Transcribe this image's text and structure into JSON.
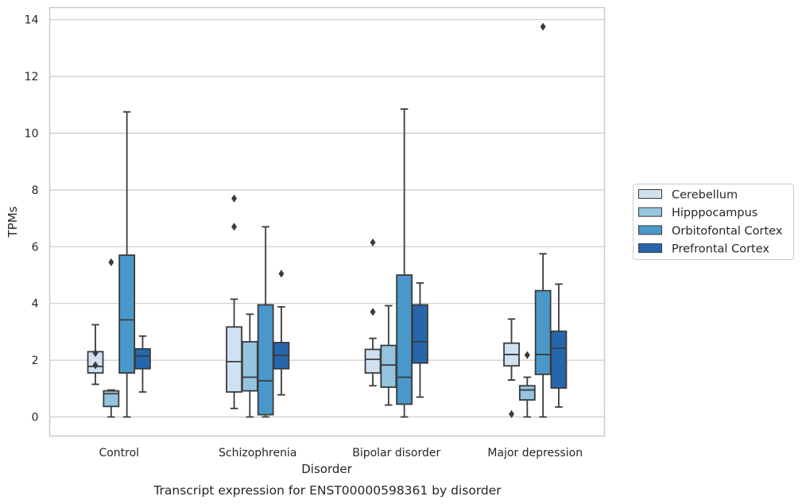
{
  "chart_data": {
    "type": "box",
    "title": "",
    "caption": "Transcript expression for ENST00000598361 by disorder",
    "xlabel": "Disorder",
    "ylabel": "TPMs",
    "ylim": [
      -0.65,
      14.45
    ],
    "yticks": [
      "0",
      "2",
      "4",
      "6",
      "8",
      "10",
      "12",
      "14"
    ],
    "grid": "horizontal",
    "legend_placement": "right",
    "categories": [
      "Control",
      "Schizophrenia",
      "Bipolar disorder",
      "Major depression"
    ],
    "series": [
      {
        "name": "Cerebellum",
        "color": "#d0e1f2",
        "boxes": [
          {
            "min": 1.15,
            "q1": 1.55,
            "median": 1.78,
            "q3": 2.3,
            "max": 3.25,
            "outliers": [
              2.25,
              1.82
            ]
          },
          {
            "min": 0.3,
            "q1": 0.88,
            "median": 1.95,
            "q3": 3.17,
            "max": 4.15,
            "outliers": [
              7.7,
              6.7
            ]
          },
          {
            "min": 1.1,
            "q1": 1.55,
            "median": 2.03,
            "q3": 2.38,
            "max": 2.77,
            "outliers": [
              6.15,
              3.7
            ]
          },
          {
            "min": 1.3,
            "q1": 1.8,
            "median": 2.2,
            "q3": 2.6,
            "max": 3.45,
            "outliers": [
              0.1
            ]
          }
        ]
      },
      {
        "name": "Hipppocampus",
        "color": "#94c4df",
        "boxes": [
          {
            "min": 0.0,
            "q1": 0.37,
            "median": 0.82,
            "q3": 0.92,
            "max": 0.95,
            "outliers": [
              5.45
            ]
          },
          {
            "min": 0.0,
            "q1": 0.92,
            "median": 1.4,
            "q3": 2.65,
            "max": 3.62,
            "outliers": []
          },
          {
            "min": 0.42,
            "q1": 1.05,
            "median": 1.83,
            "q3": 2.52,
            "max": 3.92,
            "outliers": []
          },
          {
            "min": 0.0,
            "q1": 0.6,
            "median": 0.95,
            "q3": 1.1,
            "max": 1.4,
            "outliers": [
              2.18
            ]
          }
        ]
      },
      {
        "name": "Orbitofontal Cortex",
        "color": "#4a98c9",
        "boxes": [
          {
            "min": 0.0,
            "q1": 1.55,
            "median": 3.42,
            "q3": 5.7,
            "max": 10.75,
            "outliers": []
          },
          {
            "min": 0.0,
            "q1": 0.08,
            "median": 1.27,
            "q3": 3.95,
            "max": 6.7,
            "outliers": []
          },
          {
            "min": 0.0,
            "q1": 0.45,
            "median": 1.4,
            "q3": 5.0,
            "max": 10.85,
            "outliers": []
          },
          {
            "min": 0.0,
            "q1": 1.5,
            "median": 2.2,
            "q3": 4.45,
            "max": 5.75,
            "outliers": [
              13.75
            ]
          }
        ]
      },
      {
        "name": "Prefrontal Cortex",
        "color": "#2666ad",
        "boxes": [
          {
            "min": 0.88,
            "q1": 1.7,
            "median": 2.15,
            "q3": 2.4,
            "max": 2.85,
            "outliers": []
          },
          {
            "min": 0.78,
            "q1": 1.7,
            "median": 2.17,
            "q3": 2.62,
            "max": 3.88,
            "outliers": [
              5.05
            ]
          },
          {
            "min": 0.7,
            "q1": 1.9,
            "median": 2.65,
            "q3": 3.95,
            "max": 4.72,
            "outliers": []
          },
          {
            "min": 0.35,
            "q1": 1.02,
            "median": 2.42,
            "q3": 3.02,
            "max": 4.68,
            "outliers": []
          }
        ]
      }
    ]
  }
}
